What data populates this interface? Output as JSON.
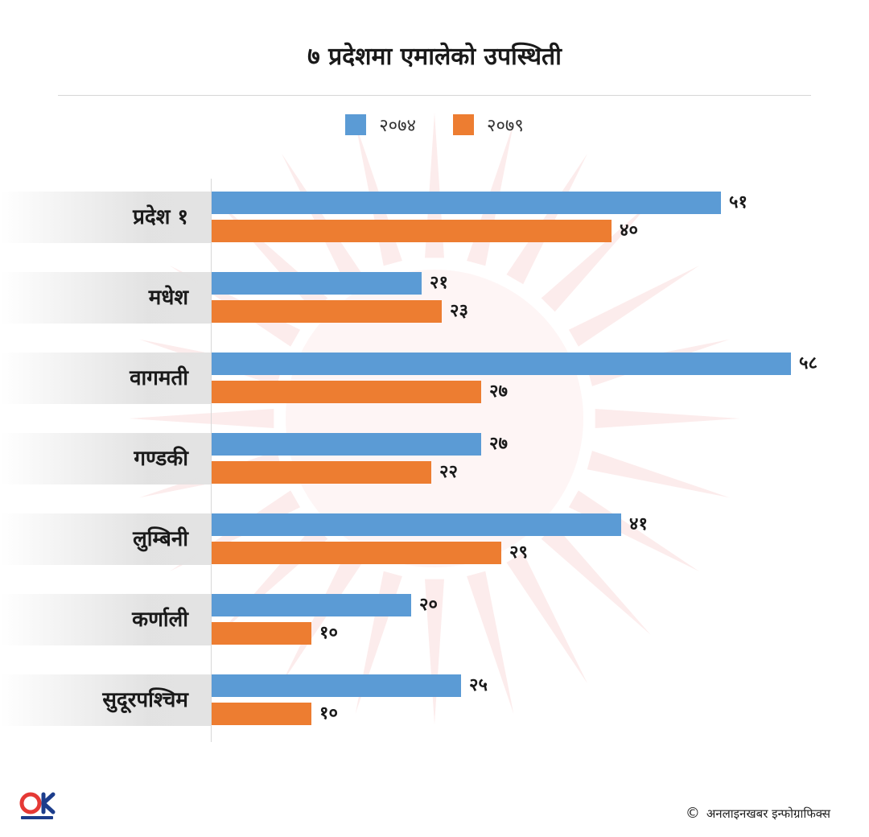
{
  "title": "७ प्रदेशमा एमालेको उपस्थिती",
  "colors": {
    "series_1": "#5b9bd5",
    "series_2": "#ed7d31"
  },
  "chart_data": {
    "type": "bar",
    "orientation": "horizontal",
    "title": "७ प्रदेशमा एमालेको उपस्थिती",
    "legend_position": "top-center",
    "grid": false,
    "categories": [
      "प्रदेश १",
      "मधेश",
      "वागमती",
      "गण्डकी",
      "लुम्बिनी",
      "कर्णाली",
      "सुदूरपश्चिम"
    ],
    "series": [
      {
        "name": "२०७४",
        "color": "#5b9bd5",
        "values": [
          51,
          21,
          58,
          27,
          41,
          20,
          25
        ],
        "labels": [
          "५१",
          "२१",
          "५८",
          "२७",
          "४१",
          "२०",
          "२५"
        ]
      },
      {
        "name": "२०७९",
        "color": "#ed7d31",
        "values": [
          40,
          23,
          27,
          22,
          29,
          10,
          10
        ],
        "labels": [
          "४०",
          "२३",
          "२७",
          "२२",
          "२९",
          "१०",
          "१०"
        ]
      }
    ],
    "xlim": [
      0,
      58
    ]
  },
  "footer": {
    "brand": "onlinekhabar",
    "logo_text": "OK",
    "copyright": "अनलाइनखबर इन्फोग्राफिक्स",
    "copyright_symbol": "©"
  }
}
